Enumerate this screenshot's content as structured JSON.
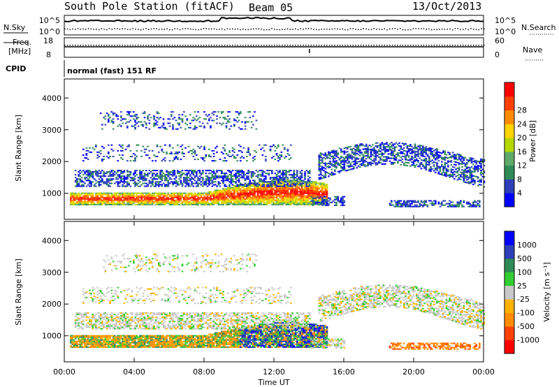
{
  "header": {
    "title": "South Pole Station (fitACF)",
    "beam": "Beam 05",
    "date": "13/Oct/2013"
  },
  "top_panels": {
    "nsky_label": "N.Sky",
    "nsky_ticks": [
      "10^5",
      "10^0"
    ],
    "nsearch_label": "N.Search",
    "nsearch_ticks": [
      "10^5",
      "10^0"
    ],
    "freq_label_1": "Freq.",
    "freq_label_2": "[MHz]",
    "freq_ticks": [
      "18",
      "8"
    ],
    "nave_label": "Nave",
    "nave_ticks": [
      "60",
      "0"
    ],
    "cpid_label": "CPID",
    "cpid_text": "normal (fast) 151 RF"
  },
  "colors": {
    "power": [
      "#0000ff",
      "#2e3fb8",
      "#2e8b57",
      "#5faa6a",
      "#b5d900",
      "#ffd400",
      "#ff8c00",
      "#ff4000",
      "#ff0000"
    ],
    "velocity": [
      "#ff0000",
      "#ff4000",
      "#ff8c00",
      "#ffb300",
      "#c8c8c8",
      "#32cd32",
      "#2e8b57",
      "#2e3fb8",
      "#0000ff"
    ]
  },
  "chart_data": [
    {
      "type": "heatmap",
      "title": "",
      "xlabel": "Time UT",
      "ylabel": "Slant Range [km]",
      "x_ticks": [
        "00:00",
        "04:00",
        "08:00",
        "12:00",
        "16:00",
        "20:00",
        "00:00"
      ],
      "y_ticks": [
        "1000",
        "2000",
        "3000",
        "4000"
      ],
      "ylim": [
        180,
        4600
      ],
      "colorbar_label": "Power [dB]",
      "colorbar_ticks": [
        "4",
        "8",
        "12",
        "16",
        "20",
        "24",
        "28"
      ],
      "colorbar_range": [
        0,
        30
      ]
    },
    {
      "type": "heatmap",
      "title": "",
      "xlabel": "Time UT",
      "ylabel": "Slant Range [km]",
      "x_ticks": [
        "00:00",
        "04:00",
        "08:00",
        "12:00",
        "16:00",
        "20:00",
        "00:00"
      ],
      "y_ticks": [
        "1000",
        "2000",
        "3000",
        "4000"
      ],
      "ylim": [
        180,
        4600
      ],
      "colorbar_label": "Velocity [m s⁻¹]",
      "colorbar_ticks": [
        "1000",
        "500",
        "100",
        "25",
        "-25",
        "-100",
        "-500",
        "-1000"
      ],
      "colorbar_range": [
        -1000,
        1000
      ]
    }
  ]
}
